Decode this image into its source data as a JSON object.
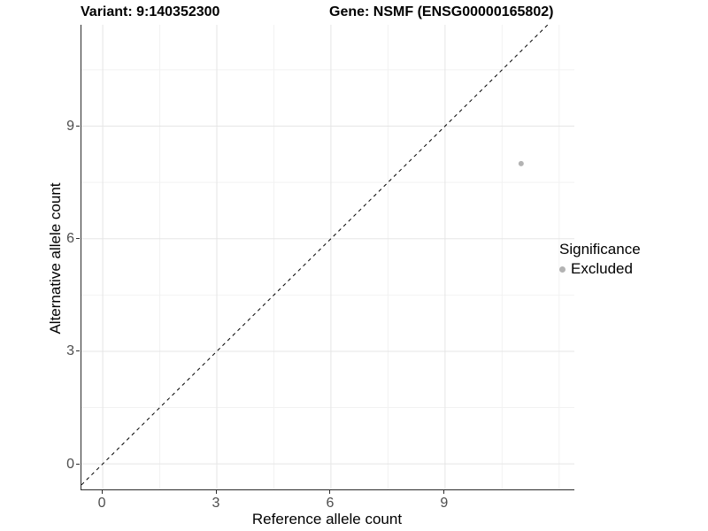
{
  "titles": {
    "variant": "Variant: 9:140352300",
    "gene": "Gene: NSMF (ENSG00000165802)"
  },
  "axes": {
    "x": {
      "label": "Reference allele count",
      "tick_labels": [
        "0",
        "3",
        "6",
        "9"
      ]
    },
    "y": {
      "label": "Alternative allele count",
      "tick_labels": [
        "0",
        "3",
        "6",
        "9"
      ]
    }
  },
  "legend": {
    "title": "Significance",
    "items": [
      {
        "label": "Excluded",
        "color": "#b3b3b3"
      }
    ]
  },
  "colors": {
    "major_grid": "#e5e5e5",
    "minor_grid": "#f2f2f2",
    "axis_line": "#2b2b2b",
    "tick_text": "#4d4d4d",
    "reference_line": "#000000",
    "point": "#b3b3b3"
  },
  "chart_data": {
    "type": "scatter",
    "title": "Variant: 9:140352300 | Gene: NSMF (ENSG00000165802)",
    "xlabel": "Reference allele count",
    "ylabel": "Alternative allele count",
    "xlim": [
      -0.56,
      12.4
    ],
    "ylim": [
      -0.68,
      11.7
    ],
    "x_ticks": [
      0,
      3,
      6,
      9
    ],
    "y_ticks": [
      0,
      3,
      6,
      9
    ],
    "x_minor_ticks": [
      1.5,
      4.5,
      7.5,
      10.5,
      12
    ],
    "y_minor_ticks": [
      1.5,
      4.5,
      7.5,
      10.5
    ],
    "grid": "on",
    "legend_position": "right",
    "legend_title": "Significance",
    "reference_line": {
      "slope": 1,
      "intercept": 0,
      "style": "dashed",
      "color": "#000000"
    },
    "series": [
      {
        "name": "Excluded",
        "color": "#b3b3b3",
        "points": [
          {
            "x": 11,
            "y": 8
          }
        ]
      }
    ]
  }
}
